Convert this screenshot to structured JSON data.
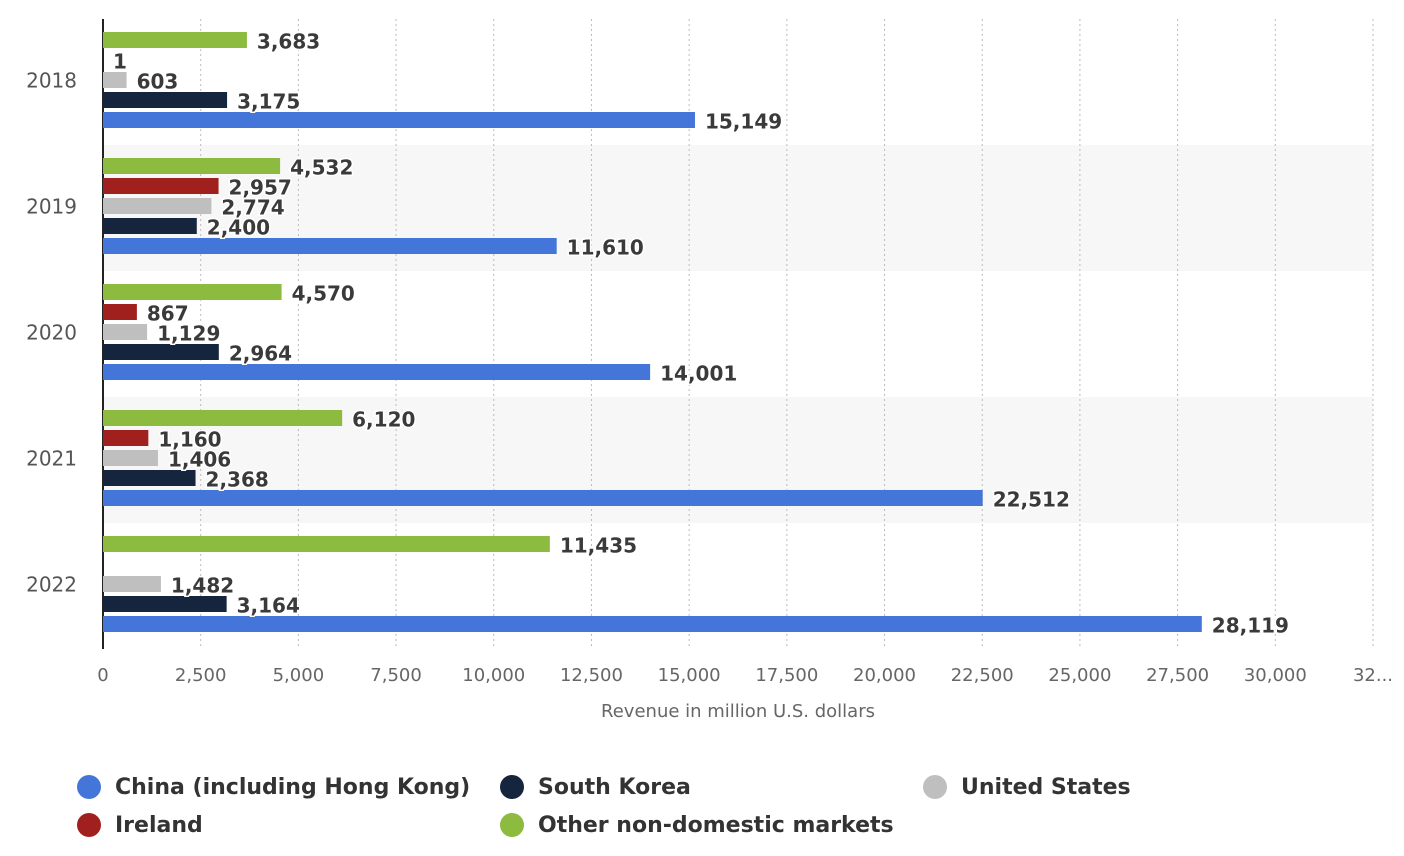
{
  "chart_data": {
    "type": "bar",
    "orientation": "horizontal",
    "categories": [
      "2018",
      "2019",
      "2020",
      "2021",
      "2022"
    ],
    "series": [
      {
        "name": "China (including Hong Kong)",
        "color": "#4476da",
        "values": [
          15149,
          11610,
          14001,
          22512,
          28119
        ],
        "value_labels": [
          "15,149",
          "11,610",
          "14,001",
          "22,512",
          "28,119"
        ]
      },
      {
        "name": "South Korea",
        "color": "#15253d",
        "values": [
          3175,
          2400,
          2964,
          2368,
          3164
        ],
        "value_labels": [
          "3,175",
          "2,400",
          "2,964",
          "2,368",
          "3,164"
        ]
      },
      {
        "name": "United States",
        "color": "#bfbfbf",
        "values": [
          603,
          2774,
          1129,
          1406,
          1482
        ],
        "value_labels": [
          "603",
          "2,774",
          "1,129",
          "1,406",
          "1,482"
        ]
      },
      {
        "name": "Ireland",
        "color": "#a0201e",
        "values": [
          1,
          2957,
          867,
          1160,
          null
        ],
        "value_labels": [
          "1",
          "2,957",
          "867",
          "1,160",
          null
        ]
      },
      {
        "name": "Other non-domestic markets",
        "color": "#8dbb3f",
        "values": [
          3683,
          4532,
          4570,
          6120,
          11435
        ],
        "value_labels": [
          "3,683",
          "4,532",
          "4,570",
          "6,120",
          "11,435"
        ]
      }
    ],
    "x_label": "Revenue in million U.S. dollars",
    "xlim": [
      0,
      32500
    ],
    "xticks": [
      0,
      {
        "value": 2500,
        "label": "2,500"
      },
      {
        "value": 5000,
        "label": "5,000"
      },
      {
        "value": 7500,
        "label": "7,500"
      },
      {
        "value": 10000,
        "label": "10,000"
      },
      {
        "value": 12500,
        "label": "12,500"
      },
      {
        "value": 15000,
        "label": "15,000"
      },
      {
        "value": 17500,
        "label": "17,500"
      },
      {
        "value": 20000,
        "label": "20,000"
      },
      {
        "value": 22500,
        "label": "22,500"
      },
      {
        "value": 25000,
        "label": "25,000"
      },
      {
        "value": 27500,
        "label": "27,500"
      },
      {
        "value": 30000,
        "label": "30,000"
      },
      {
        "value": 32500,
        "label": "32..."
      }
    ],
    "grid": true,
    "legend": "bottom"
  }
}
